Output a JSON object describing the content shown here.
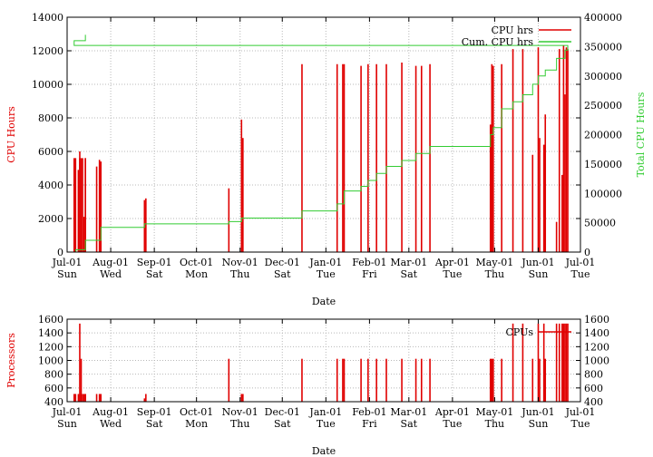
{
  "chart_data": [
    {
      "type": "bar",
      "xlabel": "Date",
      "ylabel": "CPU Hours",
      "y2label": "Total CPU Hours",
      "ylim": [
        0,
        14000
      ],
      "y2lim": [
        0,
        400000
      ],
      "yticks": [
        "0",
        "2000",
        "4000",
        "6000",
        "8000",
        "10000",
        "12000",
        "14000"
      ],
      "y2ticks": [
        "0",
        "50000",
        "100000",
        "150000",
        "200000",
        "250000",
        "300000",
        "350000",
        "400000"
      ],
      "xticks": [
        {
          "date": "Jul-01",
          "day": "Sun"
        },
        {
          "date": "Aug-01",
          "day": "Wed"
        },
        {
          "date": "Sep-01",
          "day": "Sat"
        },
        {
          "date": "Oct-01",
          "day": "Mon"
        },
        {
          "date": "Nov-01",
          "day": "Thu"
        },
        {
          "date": "Dec-01",
          "day": "Sat"
        },
        {
          "date": "Jan-01",
          "day": "Tue"
        },
        {
          "date": "Feb-01",
          "day": "Fri"
        },
        {
          "date": "Mar-01",
          "day": "Sat"
        },
        {
          "date": "Apr-01",
          "day": "Tue"
        },
        {
          "date": "May-01",
          "day": "Thu"
        },
        {
          "date": "Jun-01",
          "day": "Sun"
        },
        {
          "date": "Jul-01",
          "day": "Tue"
        }
      ],
      "grid": true,
      "legend_position": "top-right",
      "series": [
        {
          "name": "CPU hrs",
          "color": "#e00000",
          "style": "impulses",
          "axis": "y",
          "x": [
            "Jul-07",
            "Jul-09",
            "Jul-10",
            "Jul-12",
            "Jul-13",
            "Jul-14",
            "Jul-22",
            "Jul-24",
            "Jul-25",
            "Aug-25",
            "Aug-26",
            "Oct-24",
            "Nov-02",
            "Nov-03",
            "Dec-15",
            "Jan-09",
            "Jan-13",
            "Jan-14",
            "Jan-26",
            "Jan-31",
            "Feb-06",
            "Feb-13",
            "Feb-24",
            "Mar-06",
            "Mar-10",
            "Mar-16",
            "Apr-28",
            "Apr-29",
            "Apr-30",
            "May-06",
            "May-14",
            "May-21",
            "May-28",
            "Jun-01",
            "Jun-02",
            "Jun-05",
            "Jun-06",
            "Jun-14",
            "Jun-16",
            "Jun-18",
            "Jun-19",
            "Jun-20",
            "Jun-21",
            "Jun-22",
            "Jul-06",
            "Jul-10",
            "Jul-11",
            "Jul-14"
          ],
          "values": [
            5600,
            4900,
            5600,
            5600,
            2100,
            5600,
            5100,
            5500,
            5400,
            3100,
            3200,
            3800,
            7900,
            6800,
            11200,
            11200,
            11200,
            11200,
            11100,
            11200,
            11200,
            11200,
            11300,
            11100,
            11100,
            11200,
            7600,
            11200,
            11100,
            11200,
            12100,
            12100,
            5800,
            12200,
            6800,
            6400,
            8200,
            1800,
            12100,
            4600,
            12300,
            9400,
            12200,
            12100,
            5600,
            6000,
            5600,
            5600
          ]
        },
        {
          "name": "Cum. CPU hrs",
          "color": "#33cc33",
          "style": "steps",
          "axis": "y2",
          "x": [
            "Jul-01",
            "Jul-07",
            "Jul-14",
            "Jul-25",
            "Aug-25",
            "Oct-24",
            "Nov-02",
            "Dec-15",
            "Jan-09",
            "Jan-14",
            "Jan-26",
            "Jan-31",
            "Feb-06",
            "Feb-13",
            "Feb-24",
            "Mar-06",
            "Mar-16",
            "Apr-28",
            "Apr-30",
            "May-06",
            "May-14",
            "May-21",
            "May-28",
            "Jun-01",
            "Jun-06",
            "Jun-14",
            "Jun-20",
            "Jun-22",
            "Jul-06",
            "Jul-14"
          ],
          "values": [
            0,
            4000,
            20000,
            42000,
            48000,
            52000,
            58000,
            70000,
            82000,
            104000,
            112000,
            122000,
            134000,
            146000,
            156000,
            168000,
            180000,
            200000,
            212000,
            244000,
            256000,
            268000,
            286000,
            300000,
            310000,
            330000,
            344000,
            352000,
            360000,
            370000
          ]
        }
      ]
    },
    {
      "type": "bar",
      "xlabel": "Date",
      "ylabel": "Processors",
      "ylim": [
        400,
        1600
      ],
      "y2lim": [
        400,
        1600
      ],
      "yticks": [
        "400",
        "600",
        "800",
        "1000",
        "1200",
        "1400",
        "1600"
      ],
      "y2ticks": [
        "400",
        "600",
        "800",
        "1000",
        "1200",
        "1400",
        "1600"
      ],
      "xticks": [
        {
          "date": "Jul-01",
          "day": "Sun"
        },
        {
          "date": "Aug-01",
          "day": "Wed"
        },
        {
          "date": "Sep-01",
          "day": "Sat"
        },
        {
          "date": "Oct-01",
          "day": "Mon"
        },
        {
          "date": "Nov-01",
          "day": "Thu"
        },
        {
          "date": "Dec-01",
          "day": "Sat"
        },
        {
          "date": "Jan-01",
          "day": "Tue"
        },
        {
          "date": "Feb-01",
          "day": "Fri"
        },
        {
          "date": "Mar-01",
          "day": "Sat"
        },
        {
          "date": "Apr-01",
          "day": "Tue"
        },
        {
          "date": "May-01",
          "day": "Thu"
        },
        {
          "date": "Jun-01",
          "day": "Sun"
        },
        {
          "date": "Jul-01",
          "day": "Tue"
        }
      ],
      "grid": true,
      "legend_position": "top-right",
      "series": [
        {
          "name": "CPUs",
          "color": "#e00000",
          "style": "impulses",
          "x": [
            "Jul-07",
            "Jul-09",
            "Jul-10",
            "Jul-12",
            "Jul-13",
            "Jul-14",
            "Jul-22",
            "Jul-24",
            "Jul-25",
            "Aug-25",
            "Aug-26",
            "Oct-24",
            "Nov-02",
            "Nov-03",
            "Dec-15",
            "Jan-09",
            "Jan-13",
            "Jan-14",
            "Jan-26",
            "Jan-31",
            "Feb-06",
            "Feb-13",
            "Feb-24",
            "Mar-06",
            "Mar-10",
            "Mar-16",
            "Apr-28",
            "Apr-29",
            "Apr-30",
            "May-06",
            "May-14",
            "May-21",
            "May-28",
            "Jun-01",
            "Jun-02",
            "Jun-05",
            "Jun-06",
            "Jun-14",
            "Jun-16",
            "Jun-18",
            "Jun-19",
            "Jun-20",
            "Jun-21",
            "Jun-22",
            "Jul-06",
            "Jul-10",
            "Jul-11",
            "Jul-14"
          ],
          "values": [
            512,
            512,
            512,
            512,
            512,
            512,
            512,
            512,
            512,
            448,
            512,
            1024,
            512,
            512,
            1024,
            1024,
            1024,
            1024,
            1024,
            1024,
            1024,
            1024,
            1024,
            1024,
            1024,
            1024,
            1024,
            1024,
            1024,
            1024,
            1536,
            1536,
            1024,
            1536,
            1024,
            1536,
            1024,
            1536,
            1536,
            1536,
            1536,
            1536,
            1536,
            1536,
            512,
            1536,
            1024,
            512
          ]
        }
      ]
    }
  ]
}
